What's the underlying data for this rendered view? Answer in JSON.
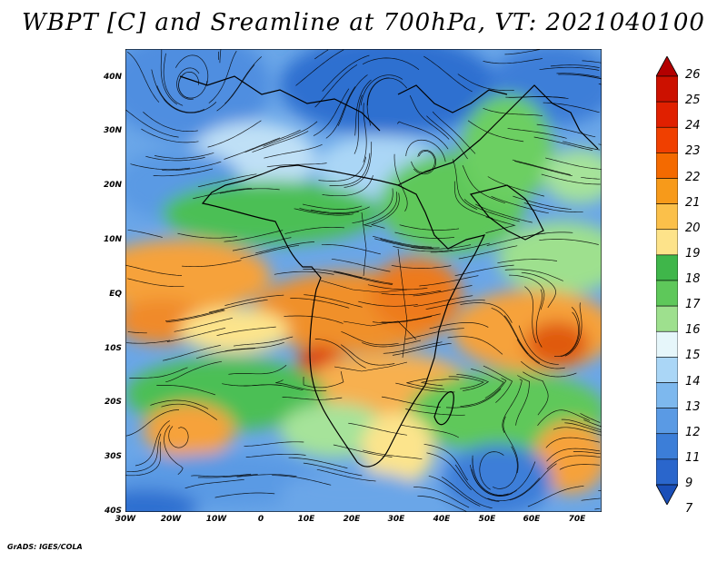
{
  "title": "WBPT [C] and Sreamline at 700hPa, VT: 2021040100",
  "footer": "GrADS: IGES/COLA",
  "lat_labels": [
    "40N",
    "30N",
    "20N",
    "10N",
    "EQ",
    "10S",
    "20S",
    "30S",
    "40S"
  ],
  "lon_labels": [
    "30W",
    "20W",
    "10W",
    "0",
    "10E",
    "20E",
    "30E",
    "40E",
    "50E",
    "60E",
    "70E"
  ],
  "colorbar": {
    "labels": [
      "26",
      "25",
      "24",
      "23",
      "22",
      "21",
      "20",
      "19",
      "18",
      "17",
      "16",
      "15",
      "14",
      "13",
      "12",
      "11",
      "9",
      "7"
    ],
    "colors": [
      "#b30000",
      "#cc1100",
      "#e02000",
      "#f04000",
      "#f46a00",
      "#f79a1a",
      "#fbc04a",
      "#fde38a",
      "#3fb64a",
      "#5ec85a",
      "#9ee08e",
      "#e6f6fa",
      "#aad6f6",
      "#7db8ee",
      "#5a9ae4",
      "#3c7ed8",
      "#2a66cc",
      "#1a4fb8"
    ]
  },
  "palette": {
    "deep_blue": "#2f6fd0",
    "blue": "#6aa6e8",
    "light_blue": "#bfe0f6",
    "green": "#4cbf55",
    "light_green": "#a6e39a",
    "yellow": "#fce48c",
    "orange": "#f6a23a",
    "dark_orange": "#ee7a1a",
    "red": "#d93a10"
  }
}
